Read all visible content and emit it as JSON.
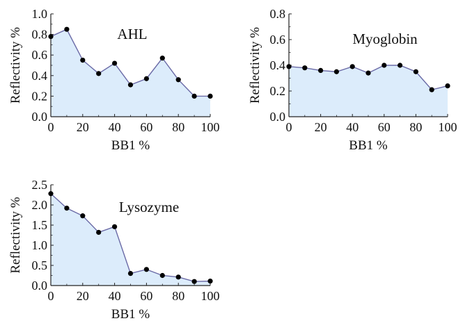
{
  "figure": {
    "colors": {
      "area_fill": "#dcecfb",
      "line": "#6a6aa6",
      "marker": "#000000",
      "axis": "#222222"
    }
  },
  "chart_data": [
    {
      "type": "area",
      "title": "AHL",
      "xlabel": "BB1 %",
      "ylabel": "Reflectivity %",
      "xlim": [
        0,
        100
      ],
      "ylim": [
        0,
        1.0
      ],
      "xticks": [
        0,
        20,
        40,
        60,
        80,
        100
      ],
      "yticks": [
        0.0,
        0.2,
        0.4,
        0.6,
        0.8,
        1.0
      ],
      "ytick_labels": [
        "0.0",
        "0.2",
        "0.4",
        "0.6",
        "0.8",
        "1.0"
      ],
      "x": [
        0,
        10,
        20,
        30,
        40,
        50,
        60,
        70,
        80,
        90,
        100
      ],
      "y": [
        0.78,
        0.85,
        0.55,
        0.42,
        0.52,
        0.31,
        0.37,
        0.57,
        0.36,
        0.2,
        0.2
      ],
      "grid": false,
      "markers": true
    },
    {
      "type": "area",
      "title": "Myoglobin",
      "xlabel": "BB1 %",
      "ylabel": "Reflectivity %",
      "xlim": [
        0,
        100
      ],
      "ylim": [
        0,
        0.8
      ],
      "xticks": [
        0,
        20,
        40,
        60,
        80,
        100
      ],
      "yticks": [
        0.0,
        0.2,
        0.4,
        0.6,
        0.8
      ],
      "ytick_labels": [
        "0.0",
        "0.2",
        "0.4",
        "0.6",
        "0.8"
      ],
      "x": [
        0,
        10,
        20,
        30,
        40,
        50,
        60,
        70,
        80,
        90,
        100
      ],
      "y": [
        0.39,
        0.38,
        0.36,
        0.35,
        0.39,
        0.34,
        0.4,
        0.4,
        0.35,
        0.21,
        0.24
      ],
      "grid": false,
      "markers": true
    },
    {
      "type": "area",
      "title": "Lysozyme",
      "xlabel": "BB1 %",
      "ylabel": "Reflectivity %",
      "xlim": [
        0,
        100
      ],
      "ylim": [
        0,
        2.5
      ],
      "xticks": [
        0,
        20,
        40,
        60,
        80,
        100
      ],
      "yticks": [
        0.0,
        0.5,
        1.0,
        1.5,
        2.0,
        2.5
      ],
      "ytick_labels": [
        "0.0",
        "0.5",
        "1.0",
        "1.5",
        "2.0",
        "2.5"
      ],
      "x": [
        0,
        10,
        20,
        30,
        40,
        50,
        60,
        70,
        80,
        90,
        100
      ],
      "y": [
        2.28,
        1.92,
        1.73,
        1.32,
        1.46,
        0.3,
        0.4,
        0.25,
        0.21,
        0.1,
        0.11
      ],
      "grid": false,
      "markers": true
    }
  ]
}
